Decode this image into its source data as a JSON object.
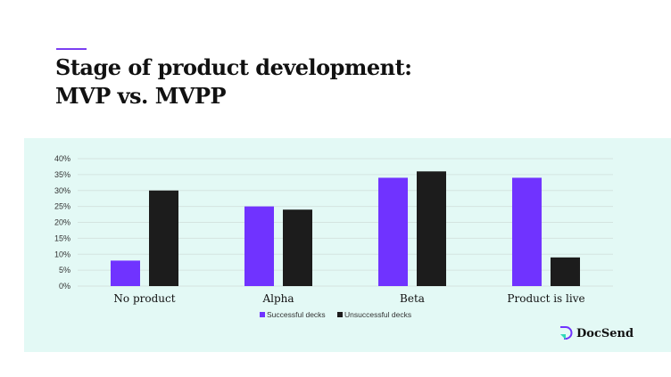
{
  "title_line1": "Stage of product development:",
  "title_line2": "MVP vs. MVPP",
  "brand": "DocSend",
  "colors": {
    "successful": "#7033ff",
    "unsuccessful": "#1c1c1c",
    "grid": "#d4e4e0",
    "background": "#e3f9f5"
  },
  "chart_data": {
    "type": "bar",
    "categories": [
      "No product",
      "Alpha",
      "Beta",
      "Product is live"
    ],
    "series": [
      {
        "name": "Successful decks",
        "values": [
          8,
          25,
          34,
          34
        ]
      },
      {
        "name": "Unsuccessful decks",
        "values": [
          30,
          24,
          36,
          9
        ]
      }
    ],
    "yticks": [
      "0%",
      "5%",
      "10%",
      "15%",
      "20%",
      "25%",
      "30%",
      "35%",
      "40%"
    ],
    "ylim": [
      0,
      40
    ],
    "grid": true,
    "legend": "bottom-center"
  }
}
